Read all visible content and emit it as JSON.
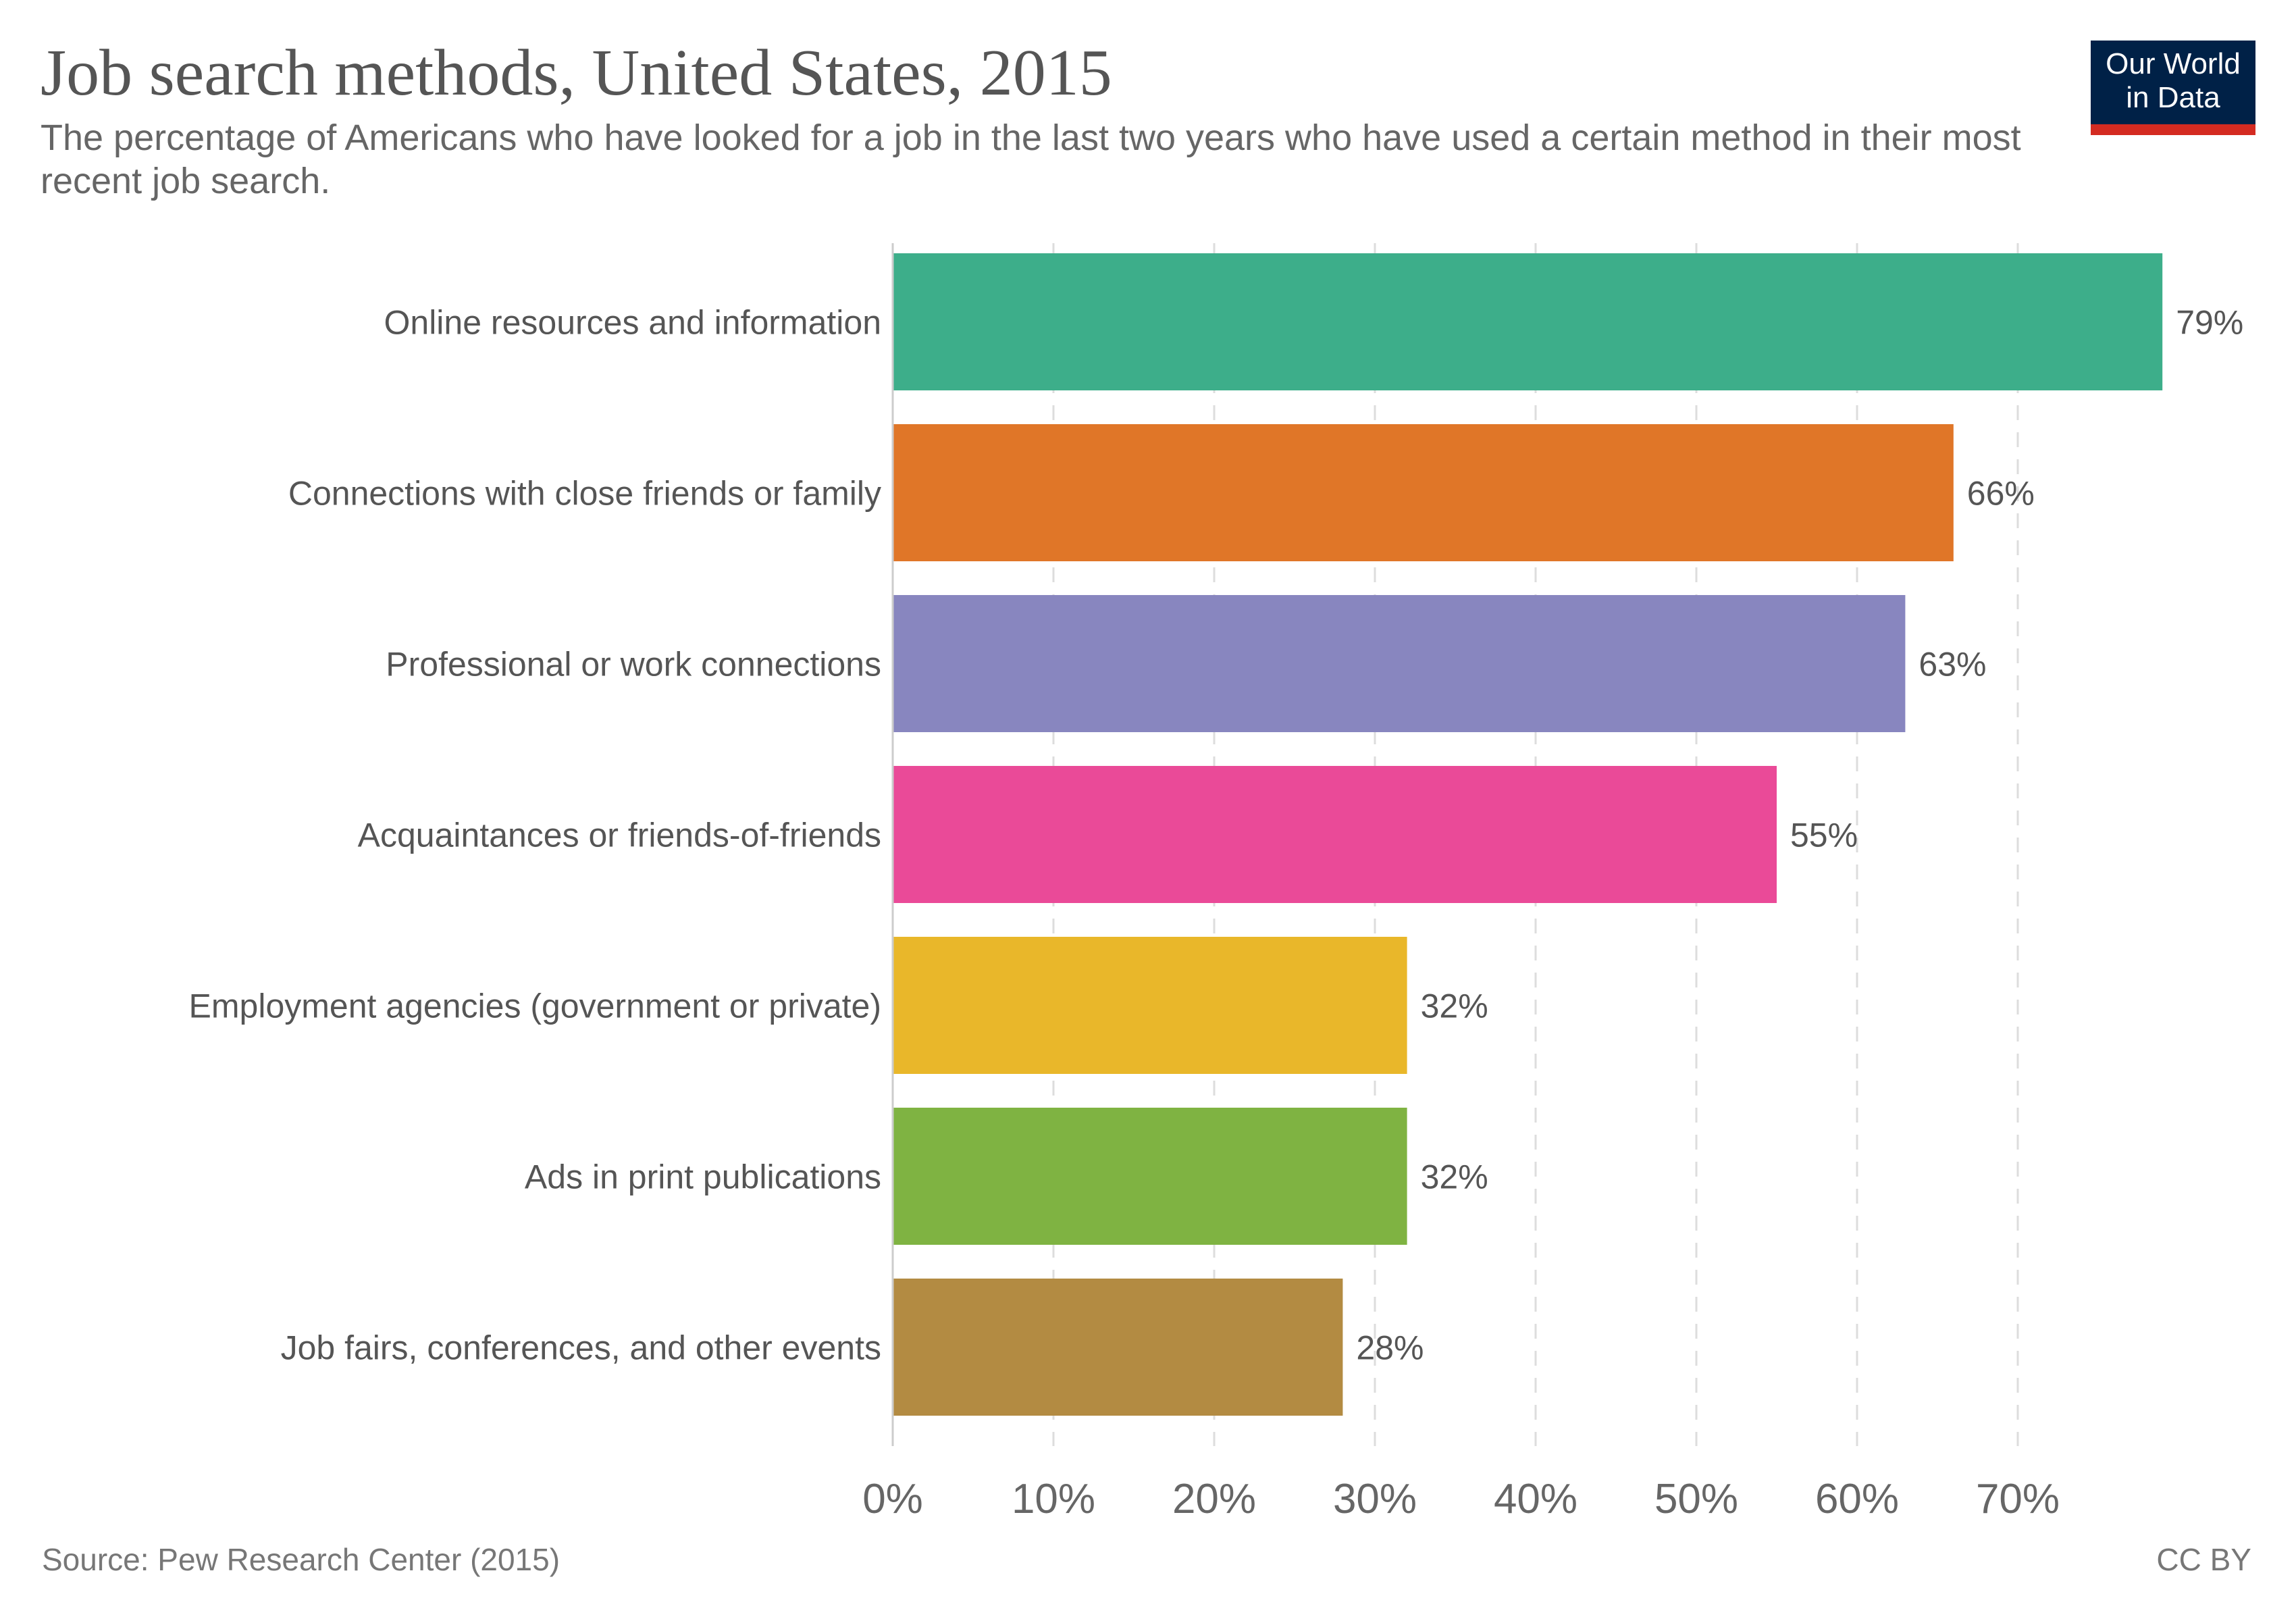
{
  "header": {
    "title": "Job search methods, United States, 2015",
    "subtitle": "The percentage of Americans who have looked for a job in the last two years who have used a certain method in their most recent job search."
  },
  "logo": {
    "line1": "Our World",
    "line2": "in Data",
    "bg_color": "#002147",
    "accent_color": "#d42b21"
  },
  "footer": {
    "source": "Source: Pew Research Center (2015)",
    "license": "CC BY"
  },
  "chart_data": {
    "type": "bar",
    "orientation": "horizontal",
    "title": "Job search methods, United States, 2015",
    "subtitle": "The percentage of Americans who have looked for a job in the last two years who have used a certain method in their most recent job search.",
    "xlabel": "",
    "ylabel": "",
    "categories": [
      "Online resources and information",
      "Connections with close friends or family",
      "Professional or work connections",
      "Acquaintances or friends-of-friends",
      "Employment agencies (government or private)",
      "Ads in print publications",
      "Job fairs, conferences, and other events"
    ],
    "values": [
      79,
      66,
      63,
      55,
      32,
      32,
      28
    ],
    "value_labels": [
      "79%",
      "66%",
      "63%",
      "55%",
      "32%",
      "32%",
      "28%"
    ],
    "colors": [
      "#3dae8a",
      "#e07628",
      "#8886bf",
      "#ea4a98",
      "#e9b72a",
      "#7fb342",
      "#b38b42"
    ],
    "xlim": [
      0,
      79
    ],
    "xticks": [
      0,
      10,
      20,
      30,
      40,
      50,
      60,
      70
    ],
    "xtick_labels": [
      "0%",
      "10%",
      "20%",
      "30%",
      "40%",
      "50%",
      "60%",
      "70%"
    ],
    "grid": "vertical dashed",
    "legend": "none",
    "source": "Source: Pew Research Center (2015)"
  }
}
